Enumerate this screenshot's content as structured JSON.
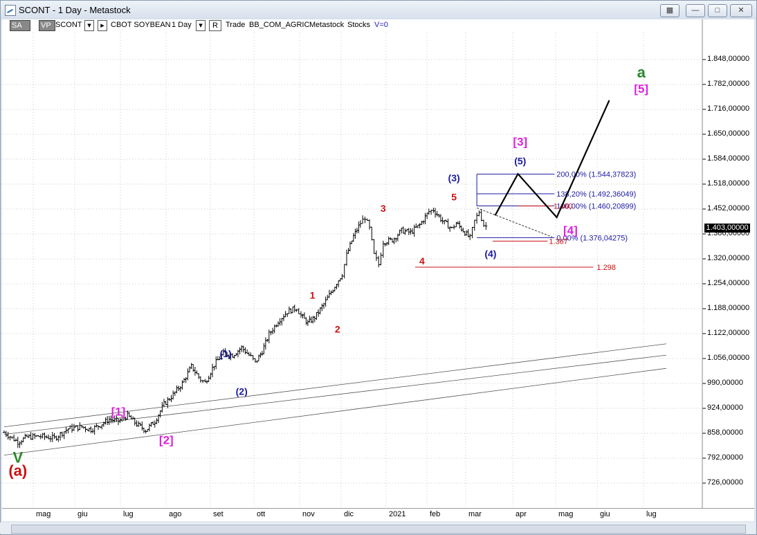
{
  "window": {
    "title": "SCONT - 1 Day - Metastock"
  },
  "toolbar": {
    "sa": "SA",
    "vp": "VP",
    "symbol": "SCONT",
    "name": "CBOT SOYBEAN",
    "period": "1 Day",
    "r_btn": "R",
    "trade": "Trade",
    "data_source": "BB_COM_AGRIC",
    "metastock": "Metastock",
    "stocks": "Stocks",
    "v_value": "V=0"
  },
  "colors": {
    "blue": "#1a1aa0",
    "red": "#cc1111",
    "magenta": "#dd22dd",
    "green": "#2a8a2a",
    "black": "#000000"
  },
  "chart_data": {
    "type": "bar",
    "price_axis_ticks": [
      "1.848,00000",
      "1.782,00000",
      "1.716,00000",
      "1.650,00000",
      "1.584,00000",
      "1.518,00000",
      "1.452,00000",
      "1.386,00000",
      "1.320,00000",
      "1.254,00000",
      "1.188,00000",
      "1.122,00000",
      "1.056,00000",
      "990,00000",
      "924,00000",
      "858,00000",
      "792,00000",
      "726,00000"
    ],
    "price_axis_values": [
      1848,
      1782,
      1716,
      1650,
      1584,
      1518,
      1452,
      1386,
      1320,
      1254,
      1188,
      1122,
      1056,
      990,
      924,
      858,
      792,
      726
    ],
    "ylim": [
      666,
      1910
    ],
    "last_price": "1.403,00000",
    "months": [
      "mag",
      "giu",
      "lug",
      "ago",
      "set",
      "ott",
      "nov",
      "dic",
      "2021",
      "feb",
      "mar",
      "apr",
      "mag",
      "giu",
      "lug"
    ],
    "price_path": [
      [
        0,
        860
      ],
      [
        6,
        835
      ],
      [
        10,
        848
      ],
      [
        16,
        850
      ],
      [
        22,
        845
      ],
      [
        28,
        870
      ],
      [
        34,
        875
      ],
      [
        38,
        868
      ],
      [
        42,
        880
      ],
      [
        46,
        895
      ],
      [
        50,
        890
      ],
      [
        54,
        905
      ],
      [
        58,
        882
      ],
      [
        62,
        866
      ],
      [
        66,
        890
      ],
      [
        70,
        935
      ],
      [
        74,
        960
      ],
      [
        78,
        990
      ],
      [
        82,
        1035
      ],
      [
        86,
        1000
      ],
      [
        88,
        992
      ],
      [
        92,
        1040
      ],
      [
        96,
        1070
      ],
      [
        100,
        1065
      ],
      [
        104,
        1085
      ],
      [
        108,
        1060
      ],
      [
        110,
        1045
      ],
      [
        113,
        1075
      ],
      [
        116,
        1120
      ],
      [
        120,
        1155
      ],
      [
        124,
        1180
      ],
      [
        128,
        1190
      ],
      [
        130,
        1170
      ],
      [
        133,
        1150
      ],
      [
        136,
        1165
      ],
      [
        140,
        1200
      ],
      [
        144,
        1240
      ],
      [
        148,
        1280
      ],
      [
        150,
        1330
      ],
      [
        153,
        1380
      ],
      [
        156,
        1415
      ],
      [
        158,
        1430
      ],
      [
        160,
        1400
      ],
      [
        162,
        1330
      ],
      [
        164,
        1305
      ],
      [
        166,
        1365
      ],
      [
        170,
        1370
      ],
      [
        174,
        1395
      ],
      [
        178,
        1390
      ],
      [
        182,
        1410
      ],
      [
        186,
        1445
      ],
      [
        188,
        1450
      ],
      [
        192,
        1420
      ],
      [
        196,
        1400
      ],
      [
        198,
        1415
      ],
      [
        201,
        1395
      ],
      [
        204,
        1375
      ],
      [
        206,
        1420
      ],
      [
        208,
        1445
      ],
      [
        210,
        1410
      ],
      [
        212,
        1403
      ]
    ],
    "channel_lines": [
      {
        "from": [
          0,
          875
        ],
        "to": [
          290,
          1095
        ]
      },
      {
        "from": [
          0,
          855
        ],
        "to": [
          290,
          1065
        ]
      },
      {
        "from": [
          0,
          800
        ],
        "to": [
          290,
          1030
        ]
      }
    ],
    "projection_path": [
      [
        215,
        1435
      ],
      [
        225,
        1545
      ],
      [
        242,
        1430
      ],
      [
        265,
        1740
      ]
    ],
    "fib_levels": [
      {
        "label": "200,00% (1.544,37823)",
        "value": 1544.38
      },
      {
        "label": "138,20% (1.492,36049)",
        "value": 1492.36
      },
      {
        "label": "100,00% (1.460,20899)",
        "value": 1460.21
      },
      {
        "label": "0,00% (1.376,04275)",
        "value": 1376.04
      }
    ],
    "support_levels": [
      {
        "label": "1.460",
        "value": 1460
      },
      {
        "label": "1.367",
        "value": 1367
      },
      {
        "label": "1.298",
        "value": 1298
      }
    ],
    "wave_labels": [
      {
        "text": "V",
        "x": 6,
        "y": 780,
        "color": "green"
      },
      {
        "text": "(a)",
        "x": 6,
        "y": 745,
        "color": "red"
      },
      {
        "text": "[1]",
        "x": 50,
        "y": 905,
        "color": "magenta"
      },
      {
        "text": "[2]",
        "x": 71,
        "y": 830,
        "color": "magenta"
      },
      {
        "text": "(1)",
        "x": 97,
        "y": 1060,
        "color": "blue"
      },
      {
        "text": "(2)",
        "x": 104,
        "y": 960,
        "color": "blue"
      },
      {
        "text": "1",
        "x": 135,
        "y": 1215,
        "color": "red"
      },
      {
        "text": "2",
        "x": 146,
        "y": 1125,
        "color": "red"
      },
      {
        "text": "3",
        "x": 166,
        "y": 1445,
        "color": "red"
      },
      {
        "text": "4",
        "x": 183,
        "y": 1305,
        "color": "red"
      },
      {
        "text": "5",
        "x": 197,
        "y": 1475,
        "color": "red"
      },
      {
        "text": "(3)",
        "x": 197,
        "y": 1525,
        "color": "blue"
      },
      {
        "text": "(4)",
        "x": 213,
        "y": 1325,
        "color": "blue"
      },
      {
        "text": "(5)",
        "x": 226,
        "y": 1570,
        "color": "blue"
      },
      {
        "text": "[3]",
        "x": 226,
        "y": 1620,
        "color": "magenta"
      },
      {
        "text": "[4]",
        "x": 248,
        "y": 1385,
        "color": "magenta"
      },
      {
        "text": "[5]",
        "x": 279,
        "y": 1760,
        "color": "magenta"
      },
      {
        "text": "a",
        "x": 279,
        "y": 1800,
        "color": "green"
      }
    ]
  }
}
